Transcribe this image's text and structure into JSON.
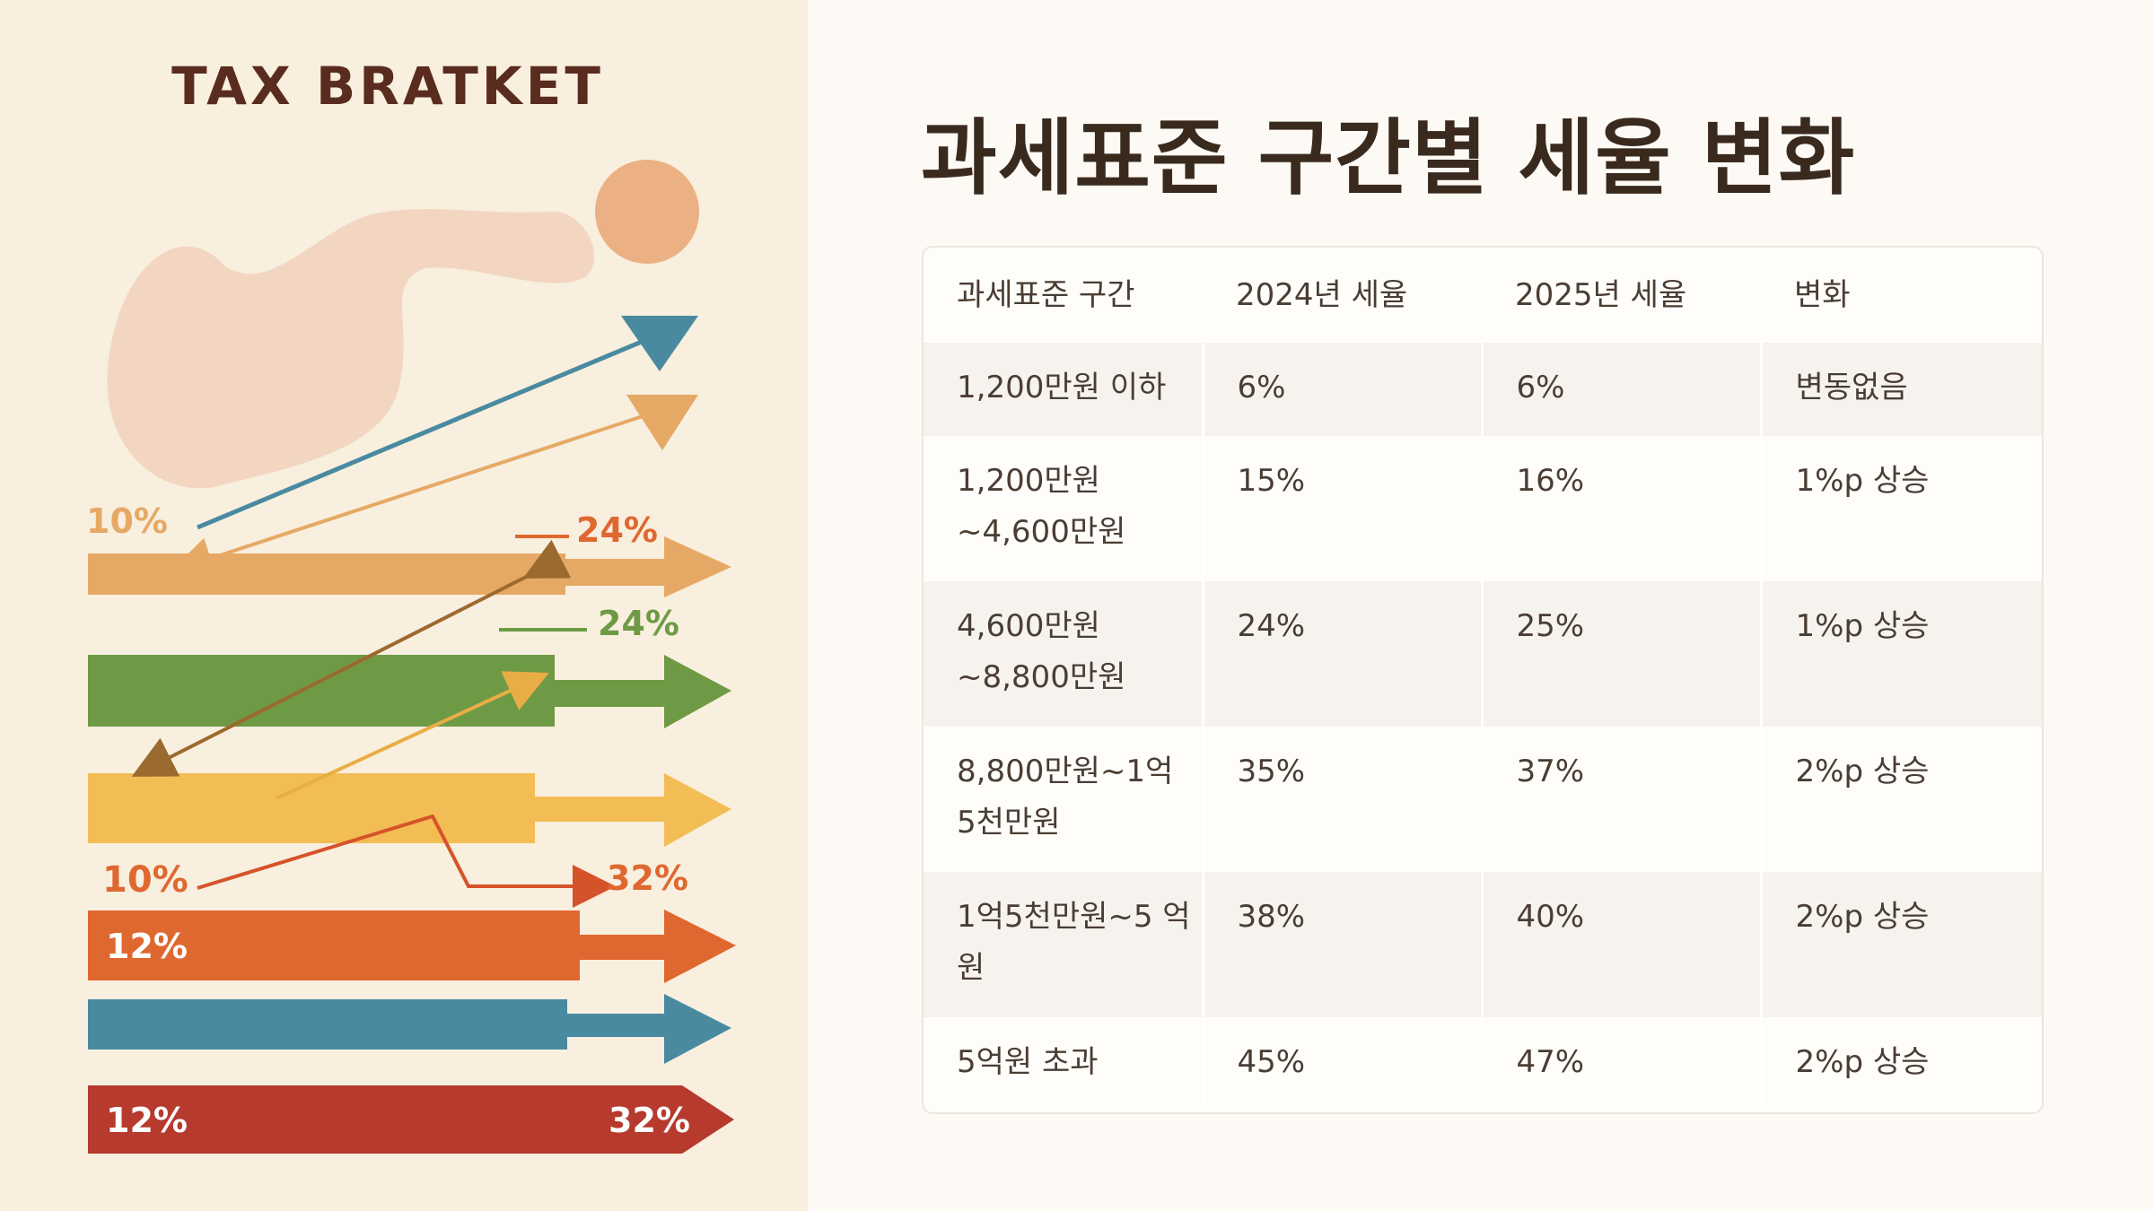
{
  "illustration": {
    "title": "TAX BRATKET",
    "labels": [
      "10%",
      "24%",
      "24%",
      "10%",
      "32%",
      "12%",
      "12%",
      "32%"
    ],
    "colors": {
      "background": "#f8efde",
      "blob": "#f2d6c2",
      "sun": "#ebb184",
      "blue": "#4a8aa0",
      "orange": "#e6a965",
      "green": "#6e9a45",
      "yellow": "#f3bd55",
      "red_orange": "#df6830",
      "crimson": "#b63a2d"
    }
  },
  "page": {
    "title": "과세표준 구간별 세율 변화"
  },
  "table": {
    "headers": [
      "과세표준 구간",
      "2024년 세율",
      "2025년 세율",
      "변화"
    ],
    "rows": [
      {
        "bracket": "1,200만원 이하",
        "rate_2024": "6%",
        "rate_2025": "6%",
        "change": "변동없음"
      },
      {
        "bracket": "1,200만원 ~4,600만원",
        "rate_2024": "15%",
        "rate_2025": "16%",
        "change": "1%p 상승"
      },
      {
        "bracket": "4,600만원 ~8,800만원",
        "rate_2024": "24%",
        "rate_2025": "25%",
        "change": "1%p 상승"
      },
      {
        "bracket": "8,800만원~1억 5천만원",
        "rate_2024": "35%",
        "rate_2025": "37%",
        "change": "2%p 상승"
      },
      {
        "bracket": "1억5천만원~5 억원",
        "rate_2024": "38%",
        "rate_2025": "40%",
        "change": "2%p 상승"
      },
      {
        "bracket": "5억원 초과",
        "rate_2024": "45%",
        "rate_2025": "47%",
        "change": "2%p 상승"
      }
    ]
  }
}
